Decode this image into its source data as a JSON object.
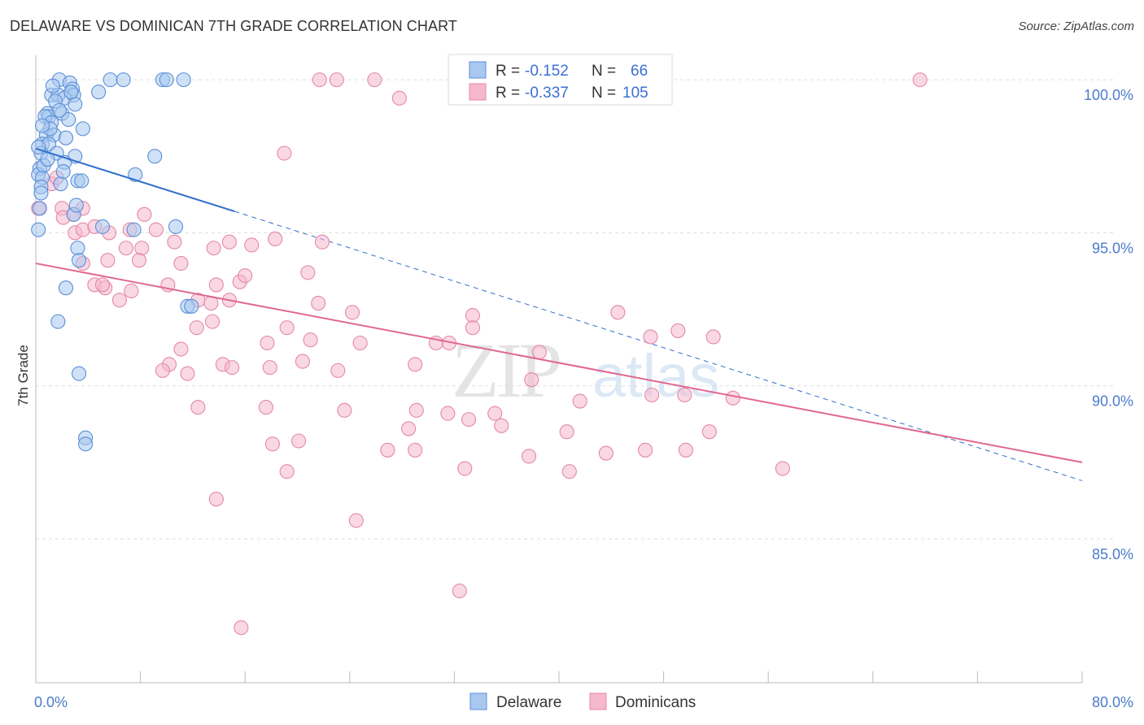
{
  "title": "DELAWARE VS DOMINICAN 7TH GRADE CORRELATION CHART",
  "source": "Source: ZipAtlas.com",
  "watermark": {
    "zip": "ZIP",
    "atlas": "atlas"
  },
  "colors": {
    "delaware_fill": "#a8c8f0",
    "delaware_stroke": "#5b8fd6",
    "delaware_line": "#2f6fcc",
    "dominican_fill": "#f6b8cc",
    "dominican_stroke": "#e488a8",
    "dominican_line": "#e0688f",
    "grid": "#dddddd",
    "tick_label": "#4a7cc9"
  },
  "legend": {
    "rows": [
      {
        "r_label": "R =",
        "r_value": "-0.152",
        "n_label": "N =",
        "n_value": "66"
      },
      {
        "r_label": "R =",
        "r_value": "-0.337",
        "n_label": "N =",
        "n_value": "105"
      }
    ]
  },
  "chart_data": {
    "type": "scatter",
    "title": "DELAWARE VS DOMINICAN 7TH GRADE CORRELATION CHART",
    "xlabel": "",
    "ylabel": "7th Grade",
    "xlim": [
      0,
      80
    ],
    "ylim": [
      80.3,
      100.8
    ],
    "x_tick_labels": [
      "0.0%",
      "80.0%"
    ],
    "y_ticks": [
      85,
      90,
      95,
      100
    ],
    "y_tick_labels": [
      "85.0%",
      "90.0%",
      "95.0%",
      "100.0%"
    ],
    "grid": true,
    "legend_position": "top-center",
    "series": [
      {
        "name": "Delaware",
        "R": -0.152,
        "N": 66,
        "trend": {
          "x0": 0,
          "y0": 97.75,
          "x1": 15.2,
          "y1": 95.7,
          "dash_to_x": 80,
          "dash_to_y": 86.9
        },
        "points": [
          [
            1.8,
            100
          ],
          [
            2.6,
            99.9
          ],
          [
            5.7,
            100
          ],
          [
            6.7,
            100
          ],
          [
            9.7,
            100
          ],
          [
            10.0,
            100
          ],
          [
            11.3,
            100
          ],
          [
            2.8,
            99.7
          ],
          [
            1.2,
            99.5
          ],
          [
            1.7,
            99.5
          ],
          [
            2.9,
            99.5
          ],
          [
            4.8,
            99.6
          ],
          [
            2.2,
            99.4
          ],
          [
            3.0,
            99.2
          ],
          [
            0.9,
            98.9
          ],
          [
            1.0,
            98.8
          ],
          [
            2.0,
            98.9
          ],
          [
            0.7,
            98.8
          ],
          [
            1.2,
            98.6
          ],
          [
            3.6,
            98.4
          ],
          [
            0.8,
            98.2
          ],
          [
            1.4,
            98.2
          ],
          [
            2.3,
            98.1
          ],
          [
            0.5,
            97.9
          ],
          [
            1.0,
            97.9
          ],
          [
            1.6,
            97.6
          ],
          [
            0.4,
            97.6
          ],
          [
            3.0,
            97.5
          ],
          [
            9.1,
            97.5
          ],
          [
            2.2,
            97.3
          ],
          [
            0.3,
            97.1
          ],
          [
            0.2,
            96.9
          ],
          [
            0.5,
            96.8
          ],
          [
            3.2,
            96.7
          ],
          [
            3.5,
            96.7
          ],
          [
            7.6,
            96.9
          ],
          [
            0.3,
            95.8
          ],
          [
            2.9,
            95.6
          ],
          [
            0.2,
            95.1
          ],
          [
            5.1,
            95.2
          ],
          [
            7.5,
            95.1
          ],
          [
            10.7,
            95.2
          ],
          [
            3.2,
            94.5
          ],
          [
            3.3,
            94.1
          ],
          [
            2.3,
            93.2
          ],
          [
            11.6,
            92.6
          ],
          [
            11.9,
            92.6
          ],
          [
            1.7,
            92.1
          ],
          [
            3.3,
            90.4
          ],
          [
            3.8,
            88.3
          ],
          [
            3.8,
            88.1
          ],
          [
            0.4,
            96.5
          ],
          [
            1.5,
            99.3
          ],
          [
            2.5,
            98.7
          ],
          [
            0.6,
            97.2
          ],
          [
            1.9,
            96.6
          ],
          [
            1.1,
            98.4
          ],
          [
            0.4,
            96.3
          ],
          [
            1.8,
            99.0
          ],
          [
            2.7,
            99.6
          ],
          [
            0.9,
            97.4
          ],
          [
            3.1,
            95.9
          ],
          [
            0.5,
            98.5
          ],
          [
            1.3,
            99.8
          ],
          [
            2.1,
            97.0
          ],
          [
            0.2,
            97.8
          ]
        ]
      },
      {
        "name": "Dominicans",
        "R": -0.337,
        "N": 105,
        "trend": {
          "x0": 0,
          "y0": 94.0,
          "x1": 80,
          "y1": 87.5
        },
        "points": [
          [
            21.7,
            100
          ],
          [
            23.0,
            100
          ],
          [
            25.9,
            100
          ],
          [
            32.3,
            100
          ],
          [
            67.6,
            100
          ],
          [
            27.8,
            99.4
          ],
          [
            19.0,
            97.6
          ],
          [
            0.2,
            95.8
          ],
          [
            1.2,
            96.6
          ],
          [
            1.6,
            96.8
          ],
          [
            2.0,
            95.8
          ],
          [
            2.1,
            95.5
          ],
          [
            3.6,
            95.8
          ],
          [
            2.9,
            95.6
          ],
          [
            3.0,
            95.0
          ],
          [
            3.6,
            95.1
          ],
          [
            4.5,
            95.2
          ],
          [
            5.6,
            95.0
          ],
          [
            7.2,
            95.1
          ],
          [
            8.3,
            95.6
          ],
          [
            9.2,
            95.1
          ],
          [
            10.6,
            94.7
          ],
          [
            13.6,
            94.5
          ],
          [
            14.8,
            94.7
          ],
          [
            16.5,
            94.6
          ],
          [
            18.3,
            94.8
          ],
          [
            21.9,
            94.7
          ],
          [
            6.9,
            94.5
          ],
          [
            8.1,
            94.5
          ],
          [
            5.5,
            94.1
          ],
          [
            3.6,
            94.0
          ],
          [
            7.9,
            94.1
          ],
          [
            11.1,
            94.0
          ],
          [
            4.5,
            93.3
          ],
          [
            5.3,
            93.2
          ],
          [
            5.1,
            93.3
          ],
          [
            7.3,
            93.1
          ],
          [
            10.1,
            93.3
          ],
          [
            13.8,
            93.3
          ],
          [
            15.6,
            93.4
          ],
          [
            16.0,
            93.6
          ],
          [
            20.8,
            93.7
          ],
          [
            6.4,
            92.8
          ],
          [
            12.4,
            92.8
          ],
          [
            13.4,
            92.7
          ],
          [
            14.8,
            92.8
          ],
          [
            21.6,
            92.7
          ],
          [
            24.2,
            92.4
          ],
          [
            33.4,
            92.3
          ],
          [
            44.5,
            92.4
          ],
          [
            13.5,
            92.1
          ],
          [
            12.3,
            91.9
          ],
          [
            19.2,
            91.9
          ],
          [
            33.4,
            91.9
          ],
          [
            49.1,
            91.8
          ],
          [
            47.0,
            91.6
          ],
          [
            51.8,
            91.6
          ],
          [
            21.0,
            91.5
          ],
          [
            24.8,
            91.4
          ],
          [
            17.7,
            91.4
          ],
          [
            30.6,
            91.4
          ],
          [
            31.6,
            91.4
          ],
          [
            38.5,
            91.1
          ],
          [
            11.1,
            91.2
          ],
          [
            10.2,
            90.7
          ],
          [
            14.3,
            90.7
          ],
          [
            15.0,
            90.6
          ],
          [
            17.9,
            90.6
          ],
          [
            20.4,
            90.8
          ],
          [
            23.1,
            90.5
          ],
          [
            9.7,
            90.5
          ],
          [
            11.6,
            90.4
          ],
          [
            29.0,
            90.7
          ],
          [
            37.9,
            90.2
          ],
          [
            47.1,
            89.7
          ],
          [
            49.6,
            89.7
          ],
          [
            53.3,
            89.6
          ],
          [
            41.6,
            89.5
          ],
          [
            12.4,
            89.3
          ],
          [
            17.6,
            89.3
          ],
          [
            23.6,
            89.2
          ],
          [
            29.1,
            89.2
          ],
          [
            31.5,
            89.1
          ],
          [
            35.1,
            89.1
          ],
          [
            33.1,
            88.9
          ],
          [
            35.6,
            88.7
          ],
          [
            28.5,
            88.6
          ],
          [
            40.6,
            88.5
          ],
          [
            51.5,
            88.5
          ],
          [
            18.1,
            88.1
          ],
          [
            20.1,
            88.2
          ],
          [
            26.9,
            87.9
          ],
          [
            29.0,
            87.9
          ],
          [
            37.7,
            87.7
          ],
          [
            43.6,
            87.8
          ],
          [
            46.6,
            87.9
          ],
          [
            49.7,
            87.9
          ],
          [
            19.2,
            87.2
          ],
          [
            32.8,
            87.3
          ],
          [
            40.8,
            87.2
          ],
          [
            57.1,
            87.3
          ],
          [
            13.8,
            86.3
          ],
          [
            24.5,
            85.6
          ],
          [
            32.4,
            83.3
          ],
          [
            15.7,
            82.1
          ]
        ]
      }
    ]
  },
  "bottom_legend": {
    "items": [
      {
        "label": "Delaware"
      },
      {
        "label": "Dominicans"
      }
    ]
  }
}
